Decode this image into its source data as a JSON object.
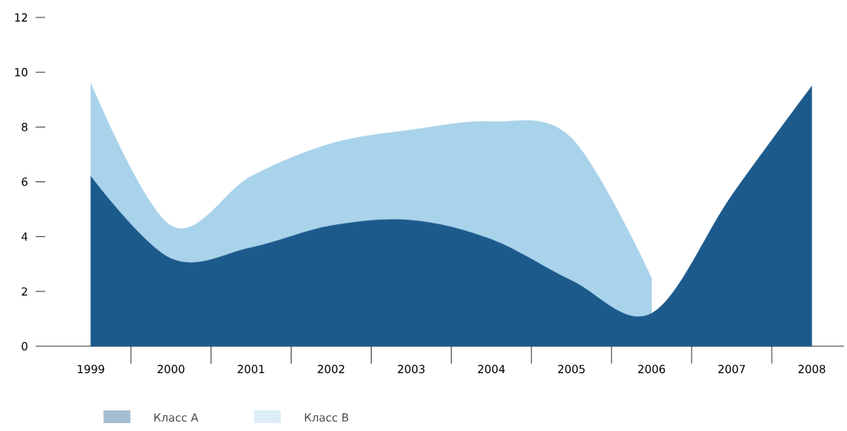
{
  "chart_data": {
    "type": "area",
    "categories": [
      "1999",
      "2000",
      "2001",
      "2002",
      "2003",
      "2004",
      "2005",
      "2006",
      "2007",
      "2008"
    ],
    "series": [
      {
        "name": "Класс A",
        "color": "#1d5a8c",
        "values": [
          6.2,
          3.2,
          3.6,
          4.4,
          4.6,
          3.9,
          2.4,
          1.2,
          5.5,
          9.5
        ]
      },
      {
        "name": "Класс B",
        "color": "#a9d3ea",
        "values": [
          9.6,
          4.4,
          6.2,
          7.4,
          7.9,
          8.2,
          7.6,
          2.5,
          null,
          null
        ]
      }
    ],
    "ylim": [
      0,
      12
    ],
    "yticks": [
      0,
      2,
      4,
      6,
      8,
      10,
      12
    ],
    "grid": false,
    "legend": "bottom left"
  }
}
